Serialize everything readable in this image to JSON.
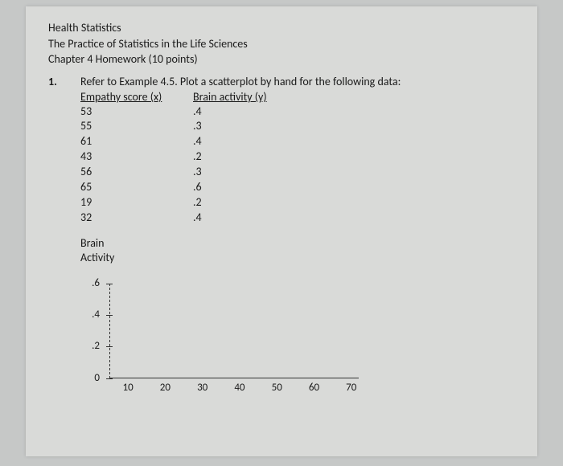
{
  "header": {
    "course": "Health Statistics",
    "book": "The Practice of Statistics in the Life Sciences",
    "chapter": "Chapter 4 Homework (10 points)"
  },
  "question": {
    "number": "1.",
    "prompt": "Refer to Example 4.5.  Plot a scatterplot by hand for the following data:",
    "col_x_header": "Empathy score (x)",
    "col_y_header": "Brain activity (y)",
    "rows": [
      {
        "x": "53",
        "y": ".4"
      },
      {
        "x": "55",
        "y": ".3"
      },
      {
        "x": "61",
        "y": ".4"
      },
      {
        "x": "43",
        "y": ".2"
      },
      {
        "x": "56",
        "y": ".3"
      },
      {
        "x": "65",
        "y": ".6"
      },
      {
        "x": "19",
        "y": ".2"
      },
      {
        "x": "32",
        "y": ".4"
      }
    ]
  },
  "chart": {
    "type": "scatter",
    "ylabel_line1": "Brain",
    "ylabel_line2": "Activity",
    "y_ticks": [
      {
        "label": ".6",
        "value": 0.6
      },
      {
        "label": ".4",
        "value": 0.4
      },
      {
        "label": ".2",
        "value": 0.2
      },
      {
        "label": "0",
        "value": 0.0
      }
    ],
    "ylim": [
      0,
      0.65
    ],
    "x_ticks": [
      {
        "label": "10",
        "value": 10
      },
      {
        "label": "20",
        "value": 20
      },
      {
        "label": "30",
        "value": 30
      },
      {
        "label": "40",
        "value": 40
      },
      {
        "label": "50",
        "value": 50
      },
      {
        "label": "60",
        "value": 60
      },
      {
        "label": "70",
        "value": 70
      }
    ],
    "xlim": [
      5,
      72
    ],
    "axis_color": "#333333",
    "tick_fontsize": 13,
    "background_color": "#d9dad8"
  }
}
